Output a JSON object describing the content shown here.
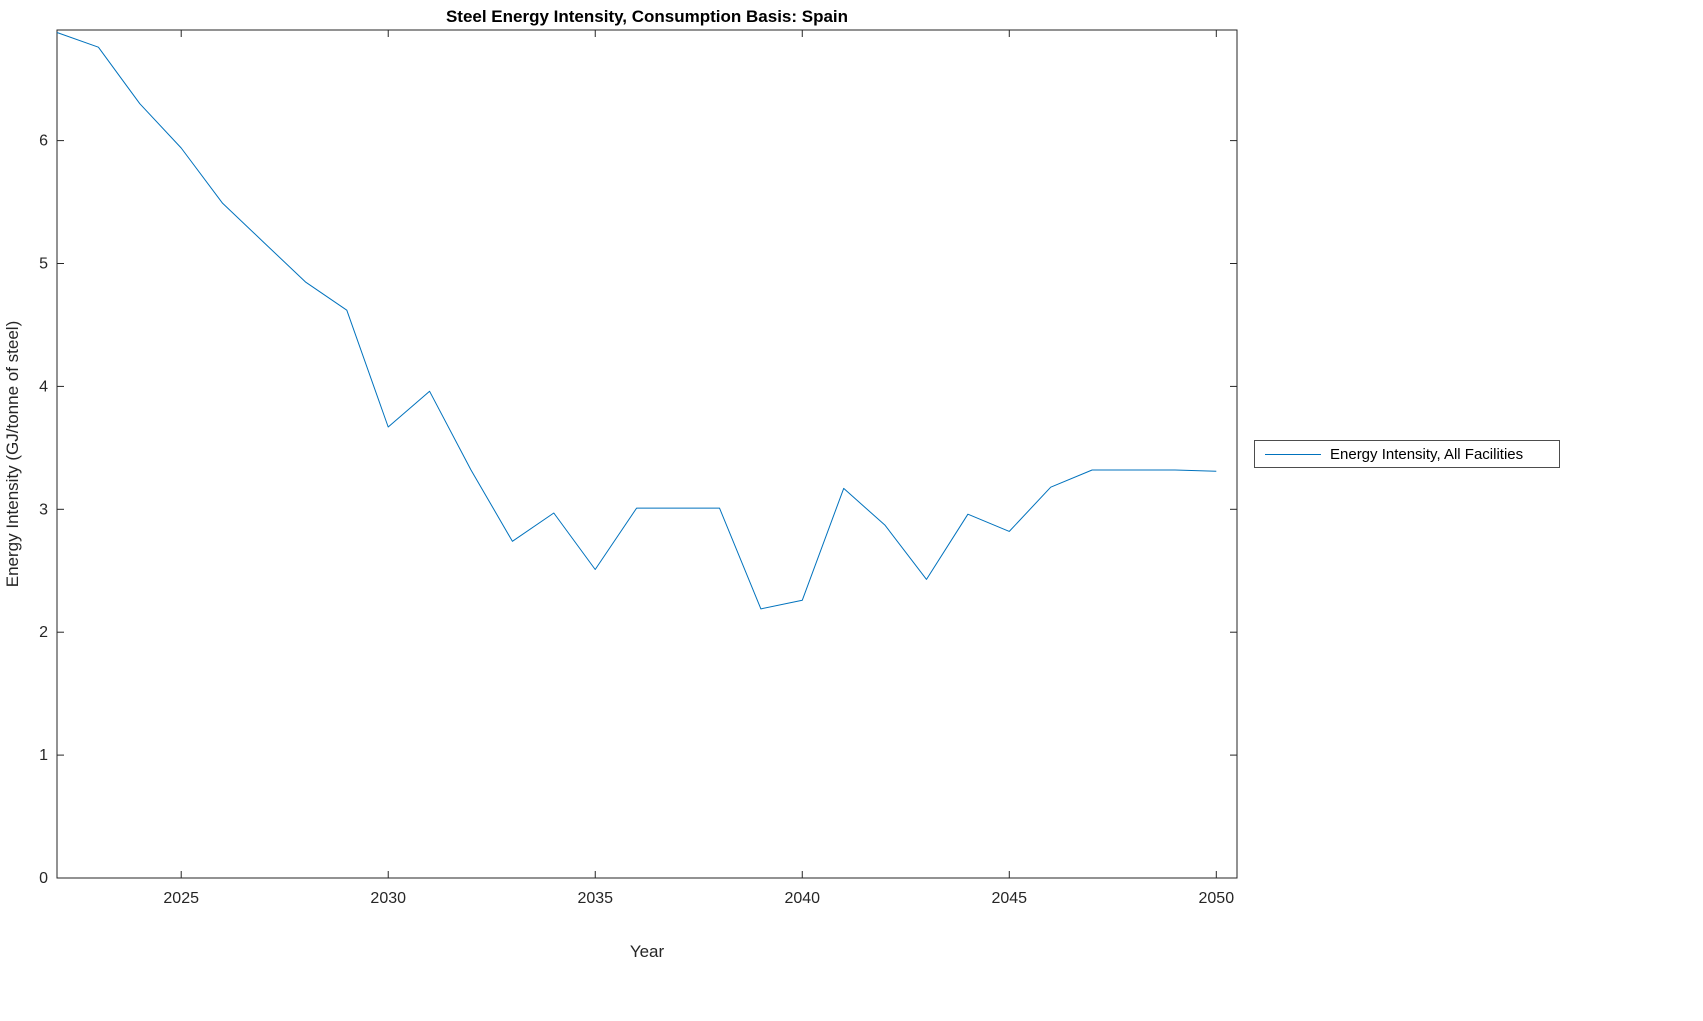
{
  "chart_data": {
    "type": "line",
    "title": "Steel Energy Intensity, Consumption Basis: Spain",
    "xlabel": "Year",
    "ylabel": "Energy Intensity (GJ/tonne of steel)",
    "xlim": [
      2022,
      2050.5
    ],
    "ylim": [
      0,
      6.9
    ],
    "xticks": [
      2025,
      2030,
      2035,
      2040,
      2045,
      2050
    ],
    "yticks": [
      0,
      1,
      2,
      3,
      4,
      5,
      6
    ],
    "grid": false,
    "line_color": "#0072BD",
    "axis_color": "#262626",
    "legend_position": "right-outside",
    "series": [
      {
        "name": "Energy Intensity, All Facilities",
        "x": [
          2022,
          2023,
          2024,
          2025,
          2026,
          2027,
          2028,
          2029,
          2030,
          2031,
          2032,
          2033,
          2034,
          2035,
          2036,
          2037,
          2038,
          2039,
          2040,
          2041,
          2042,
          2043,
          2044,
          2045,
          2046,
          2047,
          2048,
          2049,
          2050
        ],
        "y": [
          6.88,
          6.76,
          6.3,
          5.94,
          5.49,
          5.17,
          4.85,
          4.62,
          3.67,
          3.96,
          3.32,
          2.74,
          2.97,
          2.51,
          3.01,
          3.01,
          3.01,
          2.19,
          2.26,
          3.17,
          2.87,
          2.43,
          2.96,
          2.82,
          3.18,
          3.32,
          3.32,
          3.32,
          3.31
        ]
      }
    ]
  }
}
